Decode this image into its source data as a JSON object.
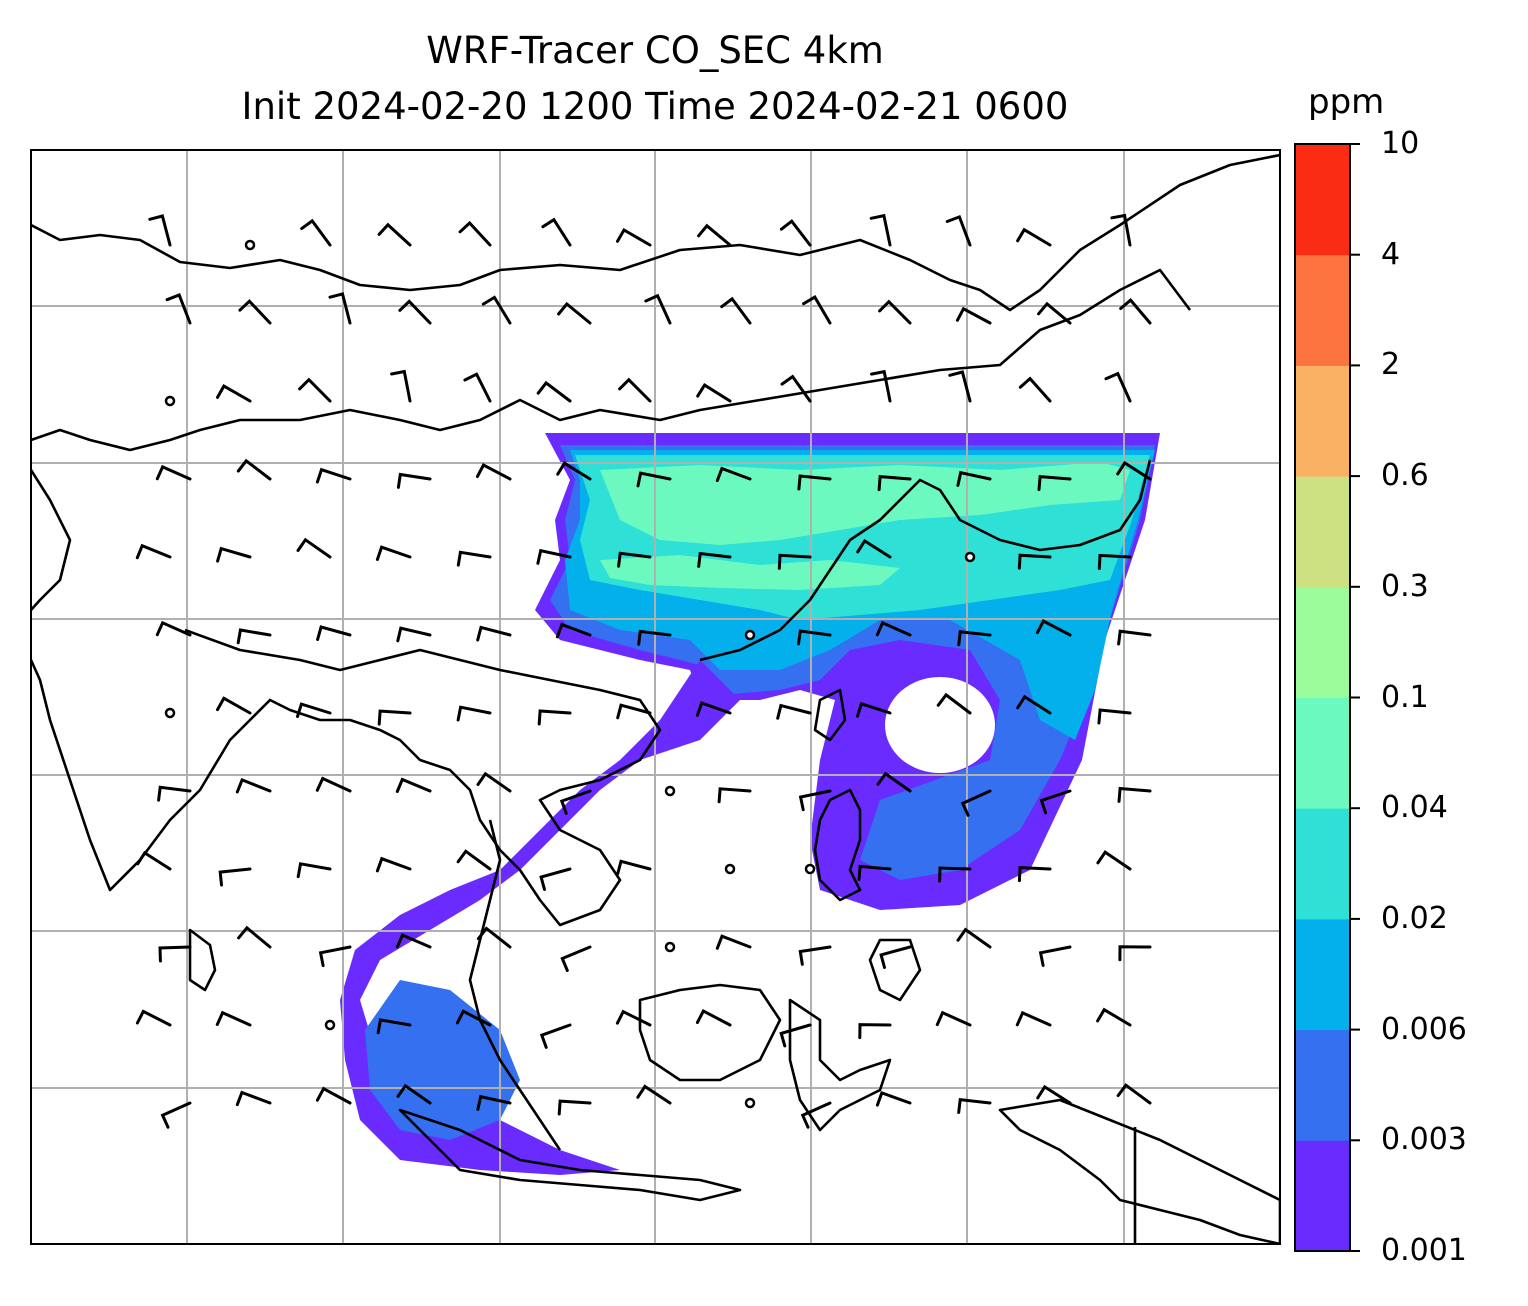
{
  "title": {
    "line1": "WRF-Tracer CO_SEC 4km",
    "line2": "Init 2024-02-20 1200 Time 2024-02-21 0600"
  },
  "colorbar": {
    "unit": "ppm",
    "levels": [
      "0.001",
      "0.003",
      "0.006",
      "0.02",
      "0.04",
      "0.1",
      "0.3",
      "0.6",
      "2",
      "4",
      "10"
    ],
    "colors": [
      "#6a2bff",
      "#3470f0",
      "#03b0ec",
      "#2ee0d6",
      "#6cf9c0",
      "#9cfb9a",
      "#cde082",
      "#fbb163",
      "#fc7340",
      "#fb2c14"
    ]
  },
  "map": {
    "ocean_color": "#ffffff",
    "coast_color": "#000000",
    "grid_color": "#b0b0b0",
    "plume_colors": {
      "outer": "#6a2bff",
      "mid": "#3470f0",
      "inner": "#03b0ec",
      "core": "#2ee0d6",
      "peak": "#6cf9c0"
    }
  }
}
